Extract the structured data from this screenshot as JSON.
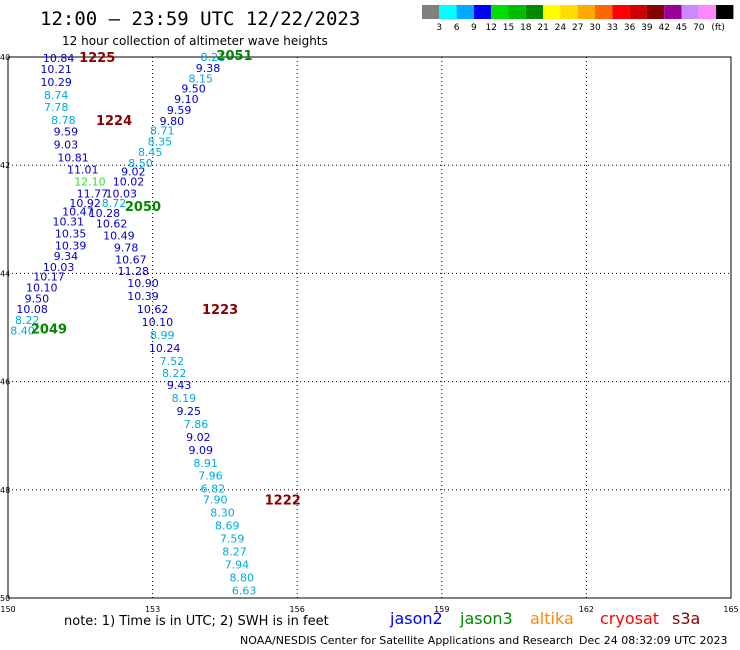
{
  "title": "12:00 – 23:59 UTC 12/22/2023",
  "subtitle": "12 hour collection of altimeter wave heights",
  "colorscale": {
    "unit": "(ft)",
    "labels": [
      "3",
      "6",
      "9",
      "12",
      "15",
      "18",
      "21",
      "24",
      "27",
      "30",
      "33",
      "36",
      "39",
      "42",
      "45",
      "70"
    ],
    "colors": [
      "#808080",
      "#00ffff",
      "#00aaff",
      "#0000ff",
      "#00dd00",
      "#00bb00",
      "#008800",
      "#ffff00",
      "#ffdd00",
      "#ffaa00",
      "#ff6600",
      "#ff0000",
      "#cc0000",
      "#880000",
      "#990099",
      "#cc88ff",
      "#ff88ff",
      "#000000"
    ]
  },
  "axes": {
    "lat_labels": [
      "40",
      "42",
      "44",
      "46",
      "48",
      "50"
    ],
    "lon_labels": [
      "150",
      "153",
      "156",
      "159",
      "162",
      "165"
    ]
  },
  "observations": [
    {
      "v": "10.84",
      "c": "#0000cc",
      "lat": 40.02,
      "lon": 151.05
    },
    {
      "v": "10.21",
      "c": "#0000cc",
      "lat": 40.22,
      "lon": 151.0
    },
    {
      "v": "10.29",
      "c": "#0000cc",
      "lat": 40.46,
      "lon": 151.0
    },
    {
      "v": "8.74",
      "c": "#00aadd",
      "lat": 40.7,
      "lon": 151.0
    },
    {
      "v": "7.78",
      "c": "#00aadd",
      "lat": 40.92,
      "lon": 151.0
    },
    {
      "v": "8.78",
      "c": "#00aadd",
      "lat": 41.16,
      "lon": 151.15
    },
    {
      "v": "9.59",
      "c": "#0000cc",
      "lat": 41.38,
      "lon": 151.2
    },
    {
      "v": "9.03",
      "c": "#0000cc",
      "lat": 41.62,
      "lon": 151.2
    },
    {
      "v": "10.81",
      "c": "#0000cc",
      "lat": 41.86,
      "lon": 151.35
    },
    {
      "v": "11.01",
      "c": "#0000cc",
      "lat": 42.08,
      "lon": 151.55
    },
    {
      "v": "12.10",
      "c": "#33dd33",
      "lat": 42.3,
      "lon": 151.7
    },
    {
      "v": "11.77",
      "c": "#0000cc",
      "lat": 42.52,
      "lon": 151.75
    },
    {
      "v": "10.92",
      "c": "#0000cc",
      "lat": 42.7,
      "lon": 151.6
    },
    {
      "v": "10.47",
      "c": "#0000cc",
      "lat": 42.86,
      "lon": 151.45
    },
    {
      "v": "10.31",
      "c": "#0000cc",
      "lat": 43.04,
      "lon": 151.25
    },
    {
      "v": "10.35",
      "c": "#0000cc",
      "lat": 43.26,
      "lon": 151.3
    },
    {
      "v": "10.39",
      "c": "#0000cc",
      "lat": 43.48,
      "lon": 151.3
    },
    {
      "v": "9.34",
      "c": "#0000cc",
      "lat": 43.68,
      "lon": 151.2
    },
    {
      "v": "10.03",
      "c": "#0000cc",
      "lat": 43.88,
      "lon": 151.05
    },
    {
      "v": "10.17",
      "c": "#0000cc",
      "lat": 44.06,
      "lon": 150.85
    },
    {
      "v": "10.10",
      "c": "#0000cc",
      "lat": 44.26,
      "lon": 150.7
    },
    {
      "v": "9.50",
      "c": "#0000cc",
      "lat": 44.46,
      "lon": 150.6
    },
    {
      "v": "10.08",
      "c": "#0000cc",
      "lat": 44.66,
      "lon": 150.5
    },
    {
      "v": "8.22",
      "c": "#00aadd",
      "lat": 44.86,
      "lon": 150.4
    },
    {
      "v": "8.40",
      "c": "#00aadd",
      "lat": 45.06,
      "lon": 150.3
    },
    {
      "v": "8.21",
      "c": "#00aadd",
      "lat": 40.0,
      "lon": 154.25
    },
    {
      "v": "9.38",
      "c": "#0000cc",
      "lat": 40.2,
      "lon": 154.15
    },
    {
      "v": "8.15",
      "c": "#00aadd",
      "lat": 40.4,
      "lon": 154.0
    },
    {
      "v": "9.50",
      "c": "#0000cc",
      "lat": 40.58,
      "lon": 153.85
    },
    {
      "v": "9.10",
      "c": "#0000cc",
      "lat": 40.78,
      "lon": 153.7
    },
    {
      "v": "9.59",
      "c": "#0000cc",
      "lat": 40.98,
      "lon": 153.55
    },
    {
      "v": "9.80",
      "c": "#0000cc",
      "lat": 41.18,
      "lon": 153.4
    },
    {
      "v": "8.71",
      "c": "#00aadd",
      "lat": 41.36,
      "lon": 153.2
    },
    {
      "v": "8.35",
      "c": "#00aadd",
      "lat": 41.56,
      "lon": 153.15
    },
    {
      "v": "8.45",
      "c": "#00aadd",
      "lat": 41.76,
      "lon": 152.95
    },
    {
      "v": "8.50",
      "c": "#00aadd",
      "lat": 41.96,
      "lon": 152.75
    },
    {
      "v": "9.02",
      "c": "#0000cc",
      "lat": 42.12,
      "lon": 152.6
    },
    {
      "v": "10.02",
      "c": "#0000cc",
      "lat": 42.3,
      "lon": 152.5
    },
    {
      "v": "10.03",
      "c": "#0000cc",
      "lat": 42.52,
      "lon": 152.35
    },
    {
      "v": "8.72",
      "c": "#00aadd",
      "lat": 42.7,
      "lon": 152.2
    },
    {
      "v": "10.28",
      "c": "#0000cc",
      "lat": 42.88,
      "lon": 152.0
    },
    {
      "v": "10.62",
      "c": "#0000cc",
      "lat": 43.08,
      "lon": 152.15
    },
    {
      "v": "10.49",
      "c": "#0000cc",
      "lat": 43.3,
      "lon": 152.3
    },
    {
      "v": "9.78",
      "c": "#0000cc",
      "lat": 43.52,
      "lon": 152.45
    },
    {
      "v": "10.67",
      "c": "#0000cc",
      "lat": 43.74,
      "lon": 152.55
    },
    {
      "v": "11.28",
      "c": "#0000cc",
      "lat": 43.96,
      "lon": 152.6
    },
    {
      "v": "10.90",
      "c": "#0000cc",
      "lat": 44.18,
      "lon": 152.8
    },
    {
      "v": "10.39",
      "c": "#0000cc",
      "lat": 44.42,
      "lon": 152.8
    },
    {
      "v": "10.62",
      "c": "#0000cc",
      "lat": 44.66,
      "lon": 153.0
    },
    {
      "v": "10.10",
      "c": "#0000cc",
      "lat": 44.9,
      "lon": 153.1
    },
    {
      "v": "8.99",
      "c": "#00aadd",
      "lat": 45.14,
      "lon": 153.2
    },
    {
      "v": "10.24",
      "c": "#0000cc",
      "lat": 45.38,
      "lon": 153.25
    },
    {
      "v": "7.52",
      "c": "#00aadd",
      "lat": 45.62,
      "lon": 153.4
    },
    {
      "v": "8.22",
      "c": "#00aadd",
      "lat": 45.84,
      "lon": 153.45
    },
    {
      "v": "9.43",
      "c": "#0000cc",
      "lat": 46.06,
      "lon": 153.55
    },
    {
      "v": "8.19",
      "c": "#00aadd",
      "lat": 46.3,
      "lon": 153.65
    },
    {
      "v": "9.25",
      "c": "#0000cc",
      "lat": 46.54,
      "lon": 153.75
    },
    {
      "v": "7.86",
      "c": "#00aadd",
      "lat": 46.78,
      "lon": 153.9
    },
    {
      "v": "9.02",
      "c": "#0000cc",
      "lat": 47.02,
      "lon": 153.95
    },
    {
      "v": "9.09",
      "c": "#0000cc",
      "lat": 47.26,
      "lon": 154.0
    },
    {
      "v": "8.91",
      "c": "#00aadd",
      "lat": 47.5,
      "lon": 154.1
    },
    {
      "v": "7.96",
      "c": "#00aadd",
      "lat": 47.74,
      "lon": 154.2
    },
    {
      "v": "6.82",
      "c": "#00aadd",
      "lat": 47.98,
      "lon": 154.25
    },
    {
      "v": "7.90",
      "c": "#00aadd",
      "lat": 48.18,
      "lon": 154.3
    },
    {
      "v": "8.30",
      "c": "#00aadd",
      "lat": 48.42,
      "lon": 154.45
    },
    {
      "v": "8.69",
      "c": "#00aadd",
      "lat": 48.66,
      "lon": 154.55
    },
    {
      "v": "7.59",
      "c": "#00aadd",
      "lat": 48.9,
      "lon": 154.65
    },
    {
      "v": "8.27",
      "c": "#00aadd",
      "lat": 49.14,
      "lon": 154.7
    },
    {
      "v": "7.94",
      "c": "#00aadd",
      "lat": 49.38,
      "lon": 154.75
    },
    {
      "v": "8.80",
      "c": "#00aadd",
      "lat": 49.62,
      "lon": 154.85
    },
    {
      "v": "6.63",
      "c": "#00aadd",
      "lat": 49.86,
      "lon": 154.9
    }
  ],
  "passes": [
    {
      "t": "1225",
      "c": "#880000",
      "lat": 40.0,
      "lon": 151.85
    },
    {
      "t": "2051",
      "c": "#008800",
      "lat": 39.96,
      "lon": 154.7
    },
    {
      "t": "1224",
      "c": "#880000",
      "lat": 41.16,
      "lon": 152.2
    },
    {
      "t": "2050",
      "c": "#008800",
      "lat": 42.75,
      "lon": 152.8
    },
    {
      "t": "1223",
      "c": "#880000",
      "lat": 44.66,
      "lon": 154.4
    },
    {
      "t": "2049",
      "c": "#008800",
      "lat": 45.02,
      "lon": 150.85
    },
    {
      "t": "1222",
      "c": "#880000",
      "lat": 48.18,
      "lon": 155.7
    }
  ],
  "note": "note:  1) Time is in UTC; 2) SWH is in feet",
  "satellites": [
    {
      "name": "jason2",
      "color": "#0000ff"
    },
    {
      "name": "jason3",
      "color": "#008800"
    },
    {
      "name": "altika",
      "color": "#ff8800"
    },
    {
      "name": "cryosat",
      "color": "#ff0000"
    },
    {
      "name": "s3a",
      "color": "#880000"
    }
  ],
  "footer": {
    "center": "NOAA/NESDIS Center for Satellite Applications and Research",
    "timestamp": "Dec 24 08:32:09 UTC 2023"
  }
}
